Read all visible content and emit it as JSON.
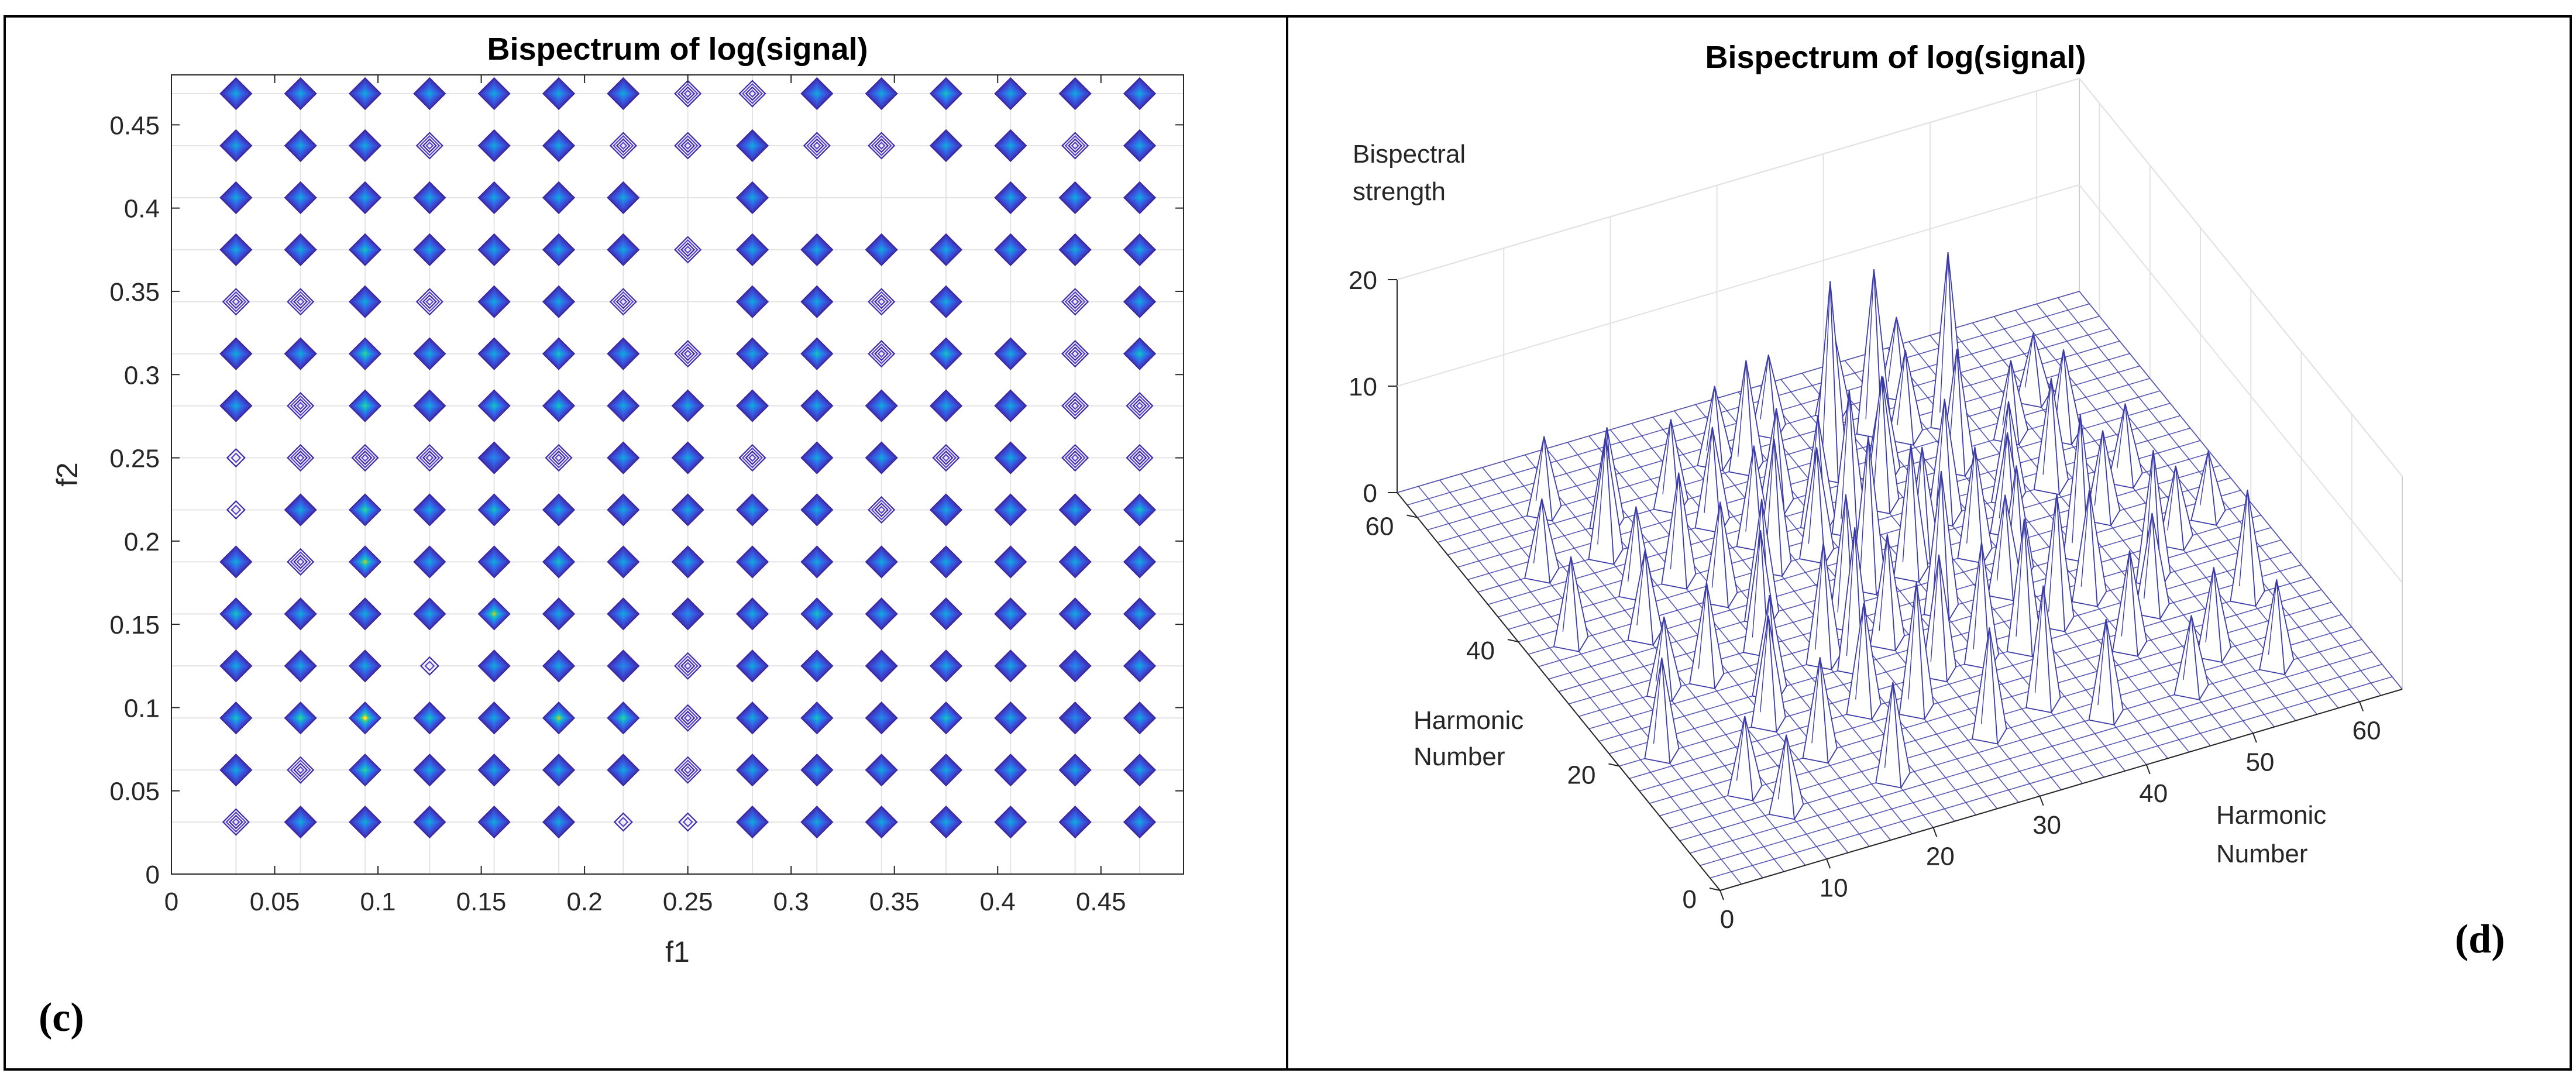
{
  "chart_data": [
    {
      "type": "contour",
      "panel_label": "(c)",
      "title": "Bispectrum of log(signal)",
      "xlabel": "f1",
      "ylabel": "f2",
      "xlim": [
        0,
        0.49
      ],
      "ylim": [
        0,
        0.48
      ],
      "xticks": [
        "0",
        "0.05",
        "0.1",
        "0.15",
        "0.2",
        "0.25",
        "0.3",
        "0.35",
        "0.4",
        "0.45"
      ],
      "yticks": [
        "0",
        "0.05",
        "0.1",
        "0.15",
        "0.2",
        "0.25",
        "0.3",
        "0.35",
        "0.4",
        "0.45"
      ],
      "grid": true,
      "grid_spacing": 0.03125,
      "f1": [
        0.03125,
        0.0625,
        0.09375,
        0.125,
        0.15625,
        0.1875,
        0.21875,
        0.25,
        0.28125,
        0.3125,
        0.34375,
        0.375,
        0.40625,
        0.4375,
        0.46875
      ],
      "f2": [
        0.03125,
        0.0625,
        0.09375,
        0.125,
        0.15625,
        0.1875,
        0.21875,
        0.25,
        0.28125,
        0.3125,
        0.34375,
        0.375,
        0.40625,
        0.4375,
        0.46875
      ],
      "intensity_rows_from_bottom": [
        [
          0.2,
          0.6,
          0.6,
          0.6,
          0.6,
          0.6,
          0.1,
          0.1,
          0.6,
          0.6,
          0.6,
          0.6,
          0.6,
          0.6,
          0.6
        ],
        [
          0.6,
          0.3,
          0.8,
          0.6,
          0.6,
          0.6,
          0.6,
          0.3,
          0.6,
          0.6,
          0.6,
          0.6,
          0.6,
          0.6,
          0.6
        ],
        [
          0.7,
          0.8,
          1.0,
          0.7,
          0.6,
          0.9,
          0.8,
          0.2,
          0.6,
          0.7,
          0.5,
          0.7,
          0.6,
          0.5,
          0.6
        ],
        [
          0.6,
          0.6,
          0.6,
          0.1,
          0.6,
          0.6,
          0.5,
          0.2,
          0.6,
          0.6,
          0.5,
          0.6,
          0.6,
          0.5,
          0.6
        ],
        [
          0.7,
          0.6,
          0.6,
          0.6,
          0.9,
          0.6,
          0.6,
          0.5,
          0.6,
          0.7,
          0.6,
          0.6,
          0.6,
          0.6,
          0.6
        ],
        [
          0.6,
          0.2,
          0.9,
          0.6,
          0.6,
          0.7,
          0.6,
          0.6,
          0.6,
          0.6,
          0.6,
          0.6,
          0.6,
          0.6,
          0.6
        ],
        [
          0.1,
          0.6,
          0.8,
          0.6,
          0.7,
          0.6,
          0.6,
          0.6,
          0.6,
          0.6,
          0.3,
          0.6,
          0.6,
          0.6,
          0.7
        ],
        [
          0.1,
          0.2,
          0.2,
          0.2,
          0.5,
          0.2,
          0.6,
          0.6,
          0.3,
          0.6,
          0.6,
          0.3,
          0.6,
          0.2,
          0.3
        ],
        [
          0.6,
          0.3,
          0.8,
          0.6,
          0.7,
          0.7,
          0.6,
          0.6,
          0.6,
          0.6,
          0.6,
          0.6,
          0.6,
          0.3,
          0.3
        ],
        [
          0.6,
          0.6,
          0.8,
          0.6,
          0.6,
          0.7,
          0.6,
          0.2,
          0.6,
          0.7,
          0.3,
          0.7,
          0.6,
          0.2,
          0.7
        ],
        [
          0.3,
          0.2,
          0.6,
          0.3,
          0.6,
          0.6,
          0.3,
          0.0,
          0.6,
          0.6,
          0.3,
          0.6,
          0.0,
          0.3,
          0.6
        ],
        [
          0.6,
          0.6,
          0.7,
          0.6,
          0.6,
          0.6,
          0.6,
          0.3,
          0.6,
          0.6,
          0.6,
          0.6,
          0.6,
          0.6,
          0.6
        ],
        [
          0.6,
          0.6,
          0.6,
          0.6,
          0.6,
          0.6,
          0.6,
          0.0,
          0.6,
          0.0,
          0.0,
          0.0,
          0.6,
          0.6,
          0.6
        ],
        [
          0.6,
          0.6,
          0.6,
          0.3,
          0.6,
          0.6,
          0.3,
          0.2,
          0.6,
          0.2,
          0.3,
          0.6,
          0.6,
          0.3,
          0.6
        ],
        [
          0.6,
          0.6,
          0.6,
          0.6,
          0.6,
          0.6,
          0.6,
          0.3,
          0.3,
          0.6,
          0.6,
          0.7,
          0.6,
          0.6,
          0.6
        ]
      ]
    },
    {
      "type": "surface3d",
      "panel_label": "(d)",
      "title": "Bispectrum of log(signal)",
      "zlabel_lines": [
        "Bispectral",
        "strength"
      ],
      "xlabel_lines": [
        "Harmonic",
        "Number"
      ],
      "ylabel_lines": [
        "Harmonic",
        "Number"
      ],
      "xlim": [
        0,
        64
      ],
      "ylim": [
        0,
        64
      ],
      "zlim": [
        0,
        20
      ],
      "xticks": [
        {
          "v": 0,
          "t": "0"
        },
        {
          "v": 10,
          "t": "10"
        },
        {
          "v": 20,
          "t": "20"
        },
        {
          "v": 30,
          "t": "30"
        },
        {
          "v": 40,
          "t": "40"
        },
        {
          "v": 50,
          "t": "50"
        },
        {
          "v": 60,
          "t": "60"
        }
      ],
      "yticks": [
        {
          "v": 0,
          "t": "0"
        },
        {
          "v": 20,
          "t": "20"
        },
        {
          "v": 40,
          "t": "40"
        },
        {
          "v": 60,
          "t": "60"
        }
      ],
      "zticks": [
        {
          "v": 0,
          "t": "0"
        },
        {
          "v": 10,
          "t": "10"
        },
        {
          "v": 20,
          "t": "20"
        }
      ],
      "peaks": [
        [
          34,
          50,
          18
        ],
        [
          46,
          52,
          16
        ],
        [
          40,
          54,
          15
        ],
        [
          4,
          20,
          9
        ],
        [
          4,
          38,
          8
        ],
        [
          12,
          48,
          11
        ],
        [
          22,
          48,
          9
        ],
        [
          28,
          48,
          9
        ],
        [
          28,
          54,
          10
        ],
        [
          36,
          44,
          12
        ],
        [
          48,
          30,
          13
        ],
        [
          52,
          24,
          12
        ],
        [
          58,
          18,
          10
        ],
        [
          56,
          8,
          8
        ],
        [
          10,
          56,
          7
        ],
        [
          24,
          40,
          12
        ],
        [
          30,
          34,
          14
        ],
        [
          34,
          28,
          13
        ],
        [
          40,
          40,
          11
        ],
        [
          42,
          22,
          12
        ],
        [
          18,
          30,
          11
        ],
        [
          14,
          20,
          10
        ],
        [
          26,
          16,
          12
        ],
        [
          36,
          12,
          11
        ],
        [
          46,
          16,
          9
        ],
        [
          20,
          8,
          9
        ],
        [
          10,
          8,
          7
        ],
        [
          16,
          42,
          10
        ],
        [
          44,
          46,
          11
        ],
        [
          50,
          40,
          10
        ],
        [
          54,
          46,
          8
        ],
        [
          24,
          24,
          13
        ],
        [
          30,
          20,
          11
        ],
        [
          38,
          20,
          12
        ],
        [
          42,
          30,
          10
        ],
        [
          20,
          34,
          11
        ],
        [
          12,
          28,
          9
        ],
        [
          8,
          12,
          7
        ],
        [
          30,
          10,
          10
        ],
        [
          52,
          12,
          8
        ],
        [
          60,
          30,
          6
        ],
        [
          56,
          38,
          7
        ],
        [
          48,
          8,
          7
        ],
        [
          40,
          8,
          9
        ],
        [
          14,
          52,
          9
        ],
        [
          6,
          48,
          7
        ],
        [
          32,
          42,
          13
        ],
        [
          26,
          30,
          12
        ],
        [
          36,
          36,
          10
        ],
        [
          44,
          36,
          9
        ],
        [
          16,
          14,
          9
        ],
        [
          22,
          18,
          10
        ],
        [
          28,
          26,
          10
        ],
        [
          34,
          20,
          11
        ],
        [
          40,
          28,
          9
        ],
        [
          46,
          24,
          10
        ],
        [
          50,
          20,
          9
        ],
        [
          56,
          28,
          7
        ],
        [
          10,
          36,
          8
        ],
        [
          8,
          28,
          7
        ],
        [
          18,
          38,
          9
        ],
        [
          24,
          44,
          9
        ],
        [
          30,
          44,
          10
        ],
        [
          38,
          48,
          9
        ],
        [
          42,
          52,
          8
        ],
        [
          50,
          48,
          7
        ],
        [
          54,
          52,
          6
        ],
        [
          20,
          52,
          8
        ],
        [
          26,
          56,
          7
        ],
        [
          32,
          58,
          7
        ],
        [
          38,
          58,
          8
        ],
        [
          44,
          58,
          7
        ],
        [
          12,
          42,
          8
        ],
        [
          22,
          26,
          11
        ],
        [
          16,
          24,
          9
        ],
        [
          28,
          40,
          10
        ],
        [
          34,
          34,
          12
        ],
        [
          40,
          34,
          10
        ],
        [
          46,
          40,
          9
        ],
        [
          52,
          34,
          8
        ]
      ]
    }
  ]
}
